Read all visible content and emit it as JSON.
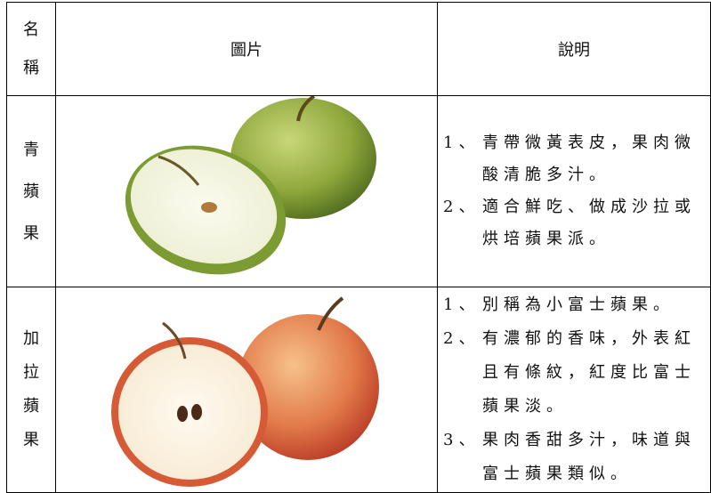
{
  "table": {
    "header": [
      "名稱",
      "圖片",
      "說明"
    ],
    "rows": [
      {
        "name": "青蘋果",
        "items": [
          {
            "number": "1、",
            "text": "青帶微黃表皮，果肉微酸清脆多汁。"
          },
          {
            "number": "2、",
            "text": "適合鮮吃、做成沙拉或烘培蘋果派。"
          }
        ]
      },
      {
        "name": "加拉蘋果",
        "items": [
          {
            "number": "1、",
            "text": "別稱為小富士蘋果。"
          },
          {
            "number": "2、",
            "text": "有濃郁的香味，外表紅且有條紋，紅度比富士蘋果淡。"
          },
          {
            "number": "3、",
            "text": "果肉香甜多汁，味道與富士蘋果類似。"
          }
        ]
      }
    ]
  }
}
